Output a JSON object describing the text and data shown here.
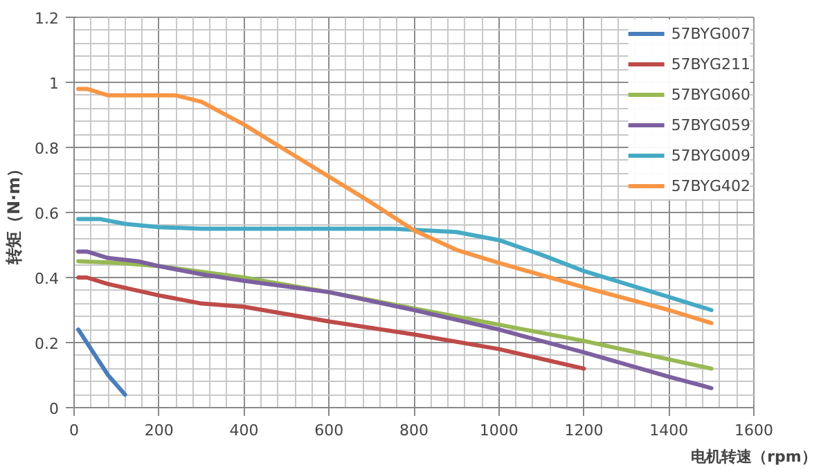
{
  "chart_data": {
    "type": "line",
    "xlabel": "电机转速（rpm）",
    "ylabel": "转矩（N·m）",
    "xlim": [
      0,
      1600
    ],
    "ylim": [
      0,
      1.2
    ],
    "xticks": [
      0,
      200,
      400,
      600,
      800,
      1000,
      1200,
      1400,
      1600
    ],
    "yticks": [
      0,
      0.2,
      0.4,
      0.6,
      0.8,
      1,
      1.2
    ],
    "grid": true,
    "legend": "top right",
    "marker": "none",
    "line_style": "solid",
    "series": [
      {
        "name": "57BYG007",
        "color": "#4a7ebb",
        "x": [
          10,
          40,
          80,
          120
        ],
        "values": [
          0.24,
          0.18,
          0.1,
          0.04
        ]
      },
      {
        "name": "57BYG211",
        "color": "#be4b48",
        "x": [
          10,
          30,
          80,
          200,
          300,
          400,
          600,
          800,
          1000,
          1200
        ],
        "values": [
          0.4,
          0.4,
          0.38,
          0.345,
          0.32,
          0.31,
          0.265,
          0.225,
          0.18,
          0.12
        ]
      },
      {
        "name": "57BYG060",
        "color": "#98b954",
        "x": [
          10,
          100,
          200,
          400,
          600,
          800,
          1000,
          1200,
          1500
        ],
        "values": [
          0.45,
          0.445,
          0.435,
          0.4,
          0.355,
          0.305,
          0.255,
          0.205,
          0.12
        ]
      },
      {
        "name": "57BYG059",
        "color": "#7d60a0",
        "x": [
          10,
          30,
          80,
          150,
          200,
          300,
          400,
          600,
          800,
          1000,
          1200,
          1400,
          1500
        ],
        "values": [
          0.48,
          0.48,
          0.46,
          0.45,
          0.435,
          0.41,
          0.39,
          0.355,
          0.3,
          0.24,
          0.17,
          0.095,
          0.06
        ]
      },
      {
        "name": "57BYG009",
        "color": "#46aac5",
        "x": [
          10,
          60,
          120,
          200,
          300,
          600,
          750,
          900,
          1000,
          1100,
          1200,
          1400,
          1500
        ],
        "values": [
          0.58,
          0.58,
          0.565,
          0.555,
          0.55,
          0.55,
          0.55,
          0.54,
          0.515,
          0.47,
          0.42,
          0.34,
          0.3
        ]
      },
      {
        "name": "57BYG402",
        "color": "#f79646",
        "x": [
          10,
          30,
          80,
          150,
          200,
          240,
          300,
          400,
          500,
          600,
          700,
          800,
          900,
          1000,
          1200,
          1400,
          1500
        ],
        "values": [
          0.98,
          0.98,
          0.96,
          0.96,
          0.96,
          0.96,
          0.94,
          0.87,
          0.79,
          0.71,
          0.63,
          0.545,
          0.485,
          0.445,
          0.37,
          0.3,
          0.26
        ]
      }
    ]
  }
}
